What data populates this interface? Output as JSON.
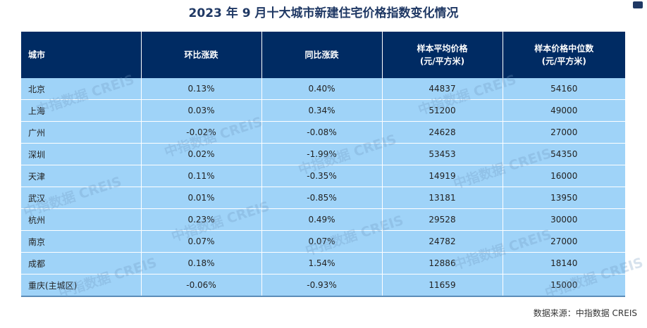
{
  "title": "2023 年 9 月十大城市新建住宅价格指数变化情况",
  "headers": {
    "city": "城市",
    "mom": "环比涨跌",
    "yoy": "同比涨跌",
    "avg": "样本平均价格\n(元/平方米)",
    "median": "样本价格中位数\n(元/平方米)"
  },
  "rows": [
    {
      "city": "北京",
      "mom": "0.13%",
      "yoy": "0.40%",
      "avg": "44837",
      "median": "54160"
    },
    {
      "city": "上海",
      "mom": "0.03%",
      "yoy": "0.34%",
      "avg": "51200",
      "median": "49000"
    },
    {
      "city": "广州",
      "mom": "-0.02%",
      "yoy": "-0.08%",
      "avg": "24628",
      "median": "27000"
    },
    {
      "city": "深圳",
      "mom": "0.02%",
      "yoy": "-1.99%",
      "avg": "53453",
      "median": "54350"
    },
    {
      "city": "天津",
      "mom": "0.11%",
      "yoy": "-0.35%",
      "avg": "14919",
      "median": "16000"
    },
    {
      "city": "武汉",
      "mom": "0.01%",
      "yoy": "-0.85%",
      "avg": "13181",
      "median": "13950"
    },
    {
      "city": "杭州",
      "mom": "0.23%",
      "yoy": "0.49%",
      "avg": "29528",
      "median": "30000"
    },
    {
      "city": "南京",
      "mom": "0.07%",
      "yoy": "0.07%",
      "avg": "24782",
      "median": "27000"
    },
    {
      "city": "成都",
      "mom": "0.18%",
      "yoy": "1.54%",
      "avg": "12886",
      "median": "18140"
    },
    {
      "city": "重庆(主城区)",
      "mom": "-0.06%",
      "yoy": "-0.93%",
      "avg": "11659",
      "median": "15000"
    }
  ],
  "source": "数据来源：中指数据 CREIS",
  "watermark": "中指数据 CREIS",
  "colors": {
    "title": "#1f3864",
    "header_bg": "#002b63",
    "row_bg": "#9fd3f8",
    "header_text": "#ffffff"
  }
}
